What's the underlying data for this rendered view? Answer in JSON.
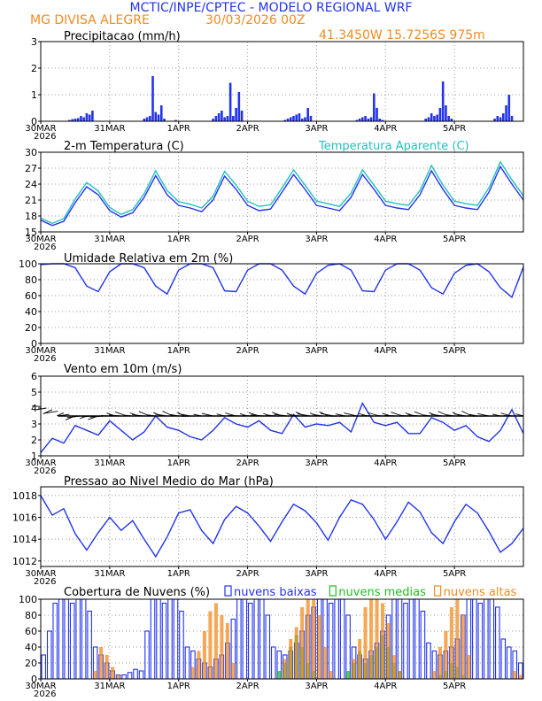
{
  "header": {
    "title": "MCTIC/INPE/CPTEC - MODELO REGIONAL WRF",
    "location": "MG DIVISA ALEGRE",
    "run": "30/03/2026 00Z",
    "coords": "41.3450W 15.7256S 975m"
  },
  "colors": {
    "blue": "#2233ee",
    "cyan": "#22c0c0",
    "orange": "#f08c22",
    "green": "#22bb22",
    "black": "#000000",
    "grid": "#999999"
  },
  "time_axis": {
    "ticks": [
      {
        "x": 0,
        "label": "30MAR",
        "year": "2026"
      },
      {
        "x": 24,
        "label": "31MAR"
      },
      {
        "x": 48,
        "label": "1APR"
      },
      {
        "x": 72,
        "label": "2APR"
      },
      {
        "x": 96,
        "label": "3APR"
      },
      {
        "x": 120,
        "label": "4APR"
      },
      {
        "x": 144,
        "label": "5APR"
      }
    ],
    "xlim": [
      0,
      168
    ]
  },
  "chart_data": [
    {
      "id": "precip",
      "type": "bar",
      "title": "Precipitacao (mm/h)",
      "ylim": [
        0,
        3
      ],
      "yticks": [
        0,
        1,
        2,
        3
      ],
      "x": [
        10,
        11,
        12,
        13,
        14,
        15,
        16,
        17,
        18,
        36,
        37,
        38,
        39,
        40,
        41,
        42,
        43,
        47,
        60,
        61,
        62,
        63,
        64,
        65,
        66,
        67,
        68,
        69,
        70,
        85,
        86,
        87,
        88,
        89,
        90,
        91,
        92,
        93,
        94,
        110,
        111,
        112,
        113,
        114,
        115,
        116,
        117,
        118,
        119,
        134,
        135,
        136,
        137,
        138,
        139,
        140,
        141,
        142,
        143,
        158,
        159,
        160,
        161,
        162,
        163,
        164
      ],
      "values": [
        0.05,
        0.08,
        0.1,
        0.12,
        0.2,
        0.15,
        0.3,
        0.25,
        0.4,
        0.1,
        0.15,
        0.2,
        1.7,
        0.35,
        0.25,
        0.6,
        0.1,
        0.05,
        0.1,
        0.2,
        0.3,
        0.4,
        0.15,
        0.2,
        1.45,
        0.2,
        0.5,
        1.1,
        0.4,
        0.05,
        0.1,
        0.15,
        0.2,
        0.25,
        0.3,
        0.1,
        0.15,
        0.5,
        0.2,
        0.05,
        0.1,
        0.15,
        0.2,
        0.1,
        0.15,
        1.05,
        0.5,
        0.1,
        0.05,
        0.1,
        0.15,
        0.3,
        0.2,
        0.25,
        0.5,
        1.5,
        0.6,
        0.2,
        0.1,
        0.1,
        0.2,
        0.15,
        0.3,
        0.6,
        1.0,
        0.2
      ],
      "series": [
        {
          "name": "Precipitacao",
          "color": "#2233ee"
        }
      ]
    },
    {
      "id": "temp",
      "type": "line",
      "title": "2-m Temperatura (C)",
      "ylim": [
        15,
        30
      ],
      "yticks": [
        15,
        18,
        21,
        24,
        27,
        30
      ],
      "legend_right": "Temperatura Aparente (C)",
      "x": [
        0,
        4,
        8,
        12,
        16,
        20,
        24,
        28,
        32,
        36,
        40,
        44,
        48,
        52,
        56,
        60,
        64,
        68,
        72,
        76,
        80,
        84,
        88,
        92,
        96,
        100,
        104,
        108,
        112,
        116,
        120,
        124,
        128,
        132,
        136,
        140,
        144,
        148,
        152,
        156,
        160,
        164,
        168
      ],
      "series": [
        {
          "name": "2-m Temperatura (C)",
          "color": "#2233ee",
          "values": [
            17.2,
            16.2,
            17.0,
            20.5,
            23.5,
            22.0,
            19.0,
            17.8,
            18.6,
            21.5,
            25.6,
            22.0,
            20.0,
            19.5,
            18.8,
            21.0,
            25.5,
            23.0,
            20.0,
            19.0,
            19.3,
            22.5,
            25.8,
            23.0,
            20.0,
            19.5,
            19.0,
            21.5,
            25.8,
            23.0,
            20.0,
            19.5,
            19.2,
            22.0,
            26.5,
            23.0,
            20.0,
            19.5,
            19.2,
            22.5,
            27.3,
            24.0,
            21.0
          ]
        },
        {
          "name": "Temperatura Aparente (C)",
          "color": "#22c0c0",
          "values": [
            17.6,
            16.6,
            17.5,
            21.2,
            24.3,
            22.7,
            19.6,
            18.3,
            19.2,
            22.2,
            26.5,
            22.8,
            20.7,
            20.2,
            19.5,
            21.7,
            26.4,
            23.8,
            20.8,
            19.8,
            20.1,
            23.3,
            26.7,
            23.8,
            20.8,
            20.3,
            19.8,
            22.3,
            26.7,
            23.8,
            20.8,
            20.3,
            20.0,
            22.8,
            27.5,
            23.8,
            20.8,
            20.3,
            20.0,
            23.3,
            28.2,
            24.8,
            21.8
          ]
        }
      ]
    },
    {
      "id": "rh",
      "type": "line",
      "title": "Umidade Relativa em 2m (%)",
      "ylim": [
        0,
        100
      ],
      "yticks": [
        0,
        20,
        40,
        60,
        80,
        100
      ],
      "x": [
        0,
        4,
        8,
        12,
        16,
        20,
        24,
        28,
        32,
        36,
        40,
        44,
        48,
        52,
        56,
        60,
        64,
        68,
        72,
        76,
        80,
        84,
        88,
        92,
        96,
        100,
        104,
        108,
        112,
        116,
        120,
        124,
        128,
        132,
        136,
        140,
        144,
        148,
        152,
        156,
        160,
        164,
        168
      ],
      "series": [
        {
          "name": "Umidade Relativa",
          "color": "#2233ee",
          "values": [
            99,
            100,
            100,
            95,
            72,
            65,
            90,
            100,
            100,
            95,
            72,
            62,
            92,
            100,
            100,
            95,
            66,
            65,
            92,
            100,
            100,
            92,
            72,
            62,
            88,
            98,
            100,
            92,
            66,
            65,
            92,
            100,
            100,
            92,
            70,
            62,
            88,
            98,
            100,
            90,
            70,
            58,
            96
          ]
        }
      ]
    },
    {
      "id": "wind",
      "type": "line",
      "title": "Vento em 10m (m/s)",
      "ylim": [
        1,
        6
      ],
      "yticks": [
        1,
        2,
        3,
        4,
        5,
        6
      ],
      "barb_level": 3.5,
      "x": [
        0,
        4,
        8,
        12,
        16,
        20,
        24,
        28,
        32,
        36,
        40,
        44,
        48,
        52,
        56,
        60,
        64,
        68,
        72,
        76,
        80,
        84,
        88,
        92,
        96,
        100,
        104,
        108,
        112,
        116,
        120,
        124,
        128,
        132,
        136,
        140,
        144,
        148,
        152,
        156,
        160,
        164,
        168
      ],
      "series": [
        {
          "name": "Vento",
          "color": "#2233ee",
          "values": [
            1.2,
            2.1,
            1.8,
            2.9,
            2.6,
            2.3,
            3.2,
            2.6,
            2.0,
            2.5,
            3.5,
            2.8,
            2.6,
            2.2,
            2.0,
            2.6,
            3.4,
            3.0,
            2.8,
            3.2,
            2.6,
            2.4,
            3.6,
            2.8,
            3.0,
            2.9,
            3.1,
            2.5,
            4.3,
            3.1,
            2.9,
            3.1,
            2.4,
            2.4,
            3.4,
            3.1,
            2.6,
            2.9,
            2.2,
            1.9,
            2.6,
            3.9,
            2.4
          ]
        }
      ]
    },
    {
      "id": "pressure",
      "type": "line",
      "title": "Pressao ao Nivel Medio do Mar (hPa)",
      "ylim": [
        1011.5,
        1018.8
      ],
      "yticks": [
        1012,
        1014,
        1016,
        1018
      ],
      "x": [
        0,
        4,
        8,
        12,
        16,
        20,
        24,
        28,
        32,
        36,
        40,
        44,
        48,
        52,
        56,
        60,
        64,
        68,
        72,
        76,
        80,
        84,
        88,
        92,
        96,
        100,
        104,
        108,
        112,
        116,
        120,
        124,
        128,
        132,
        136,
        140,
        144,
        148,
        152,
        156,
        160,
        164,
        168
      ],
      "series": [
        {
          "name": "Pressao",
          "color": "#2233ee",
          "values": [
            1018.0,
            1016.2,
            1016.8,
            1014.5,
            1013.0,
            1014.6,
            1016.0,
            1014.8,
            1015.7,
            1014.0,
            1012.4,
            1014.2,
            1016.4,
            1016.7,
            1014.8,
            1013.6,
            1015.8,
            1017.0,
            1016.4,
            1015.2,
            1013.8,
            1015.6,
            1017.2,
            1016.6,
            1015.5,
            1013.9,
            1016.0,
            1017.6,
            1017.2,
            1015.8,
            1014.0,
            1015.6,
            1017.4,
            1016.5,
            1014.6,
            1013.6,
            1015.6,
            1017.2,
            1016.4,
            1014.7,
            1012.8,
            1013.6,
            1015.0
          ]
        }
      ]
    },
    {
      "id": "clouds",
      "type": "bar",
      "title": "Cobertura de Nuvens (%)",
      "ylim": [
        0,
        100
      ],
      "yticks": [
        0,
        20,
        40,
        60,
        80,
        100
      ],
      "legend": [
        {
          "name": "nuvens baixas",
          "color": "#2233ee"
        },
        {
          "name": "nuvens medias",
          "color": "#22bb22"
        },
        {
          "name": "nuvens altas",
          "color": "#f08c22"
        }
      ],
      "bins": 84,
      "series": [
        {
          "name": "nuvens baixas",
          "values": [
            30,
            60,
            95,
            100,
            100,
            95,
            100,
            100,
            85,
            40,
            30,
            20,
            10,
            5,
            5,
            8,
            12,
            10,
            60,
            100,
            100,
            95,
            100,
            100,
            85,
            40,
            35,
            25,
            20,
            15,
            25,
            30,
            45,
            75,
            100,
            100,
            95,
            100,
            100,
            80,
            40,
            35,
            30,
            35,
            45,
            60,
            80,
            90,
            100,
            100,
            95,
            100,
            100,
            80,
            40,
            30,
            25,
            35,
            45,
            60,
            80,
            100,
            100,
            95,
            100,
            100,
            85,
            45,
            35,
            30,
            35,
            40,
            50,
            80,
            100,
            100,
            95,
            100,
            100,
            90,
            50,
            40,
            35,
            20
          ]
        },
        {
          "name": "nuvens medias",
          "values": [
            0,
            0,
            0,
            0,
            0,
            0,
            0,
            0,
            0,
            0,
            0,
            0,
            0,
            0,
            0,
            0,
            0,
            0,
            0,
            0,
            0,
            0,
            0,
            0,
            0,
            0,
            0,
            0,
            0,
            0,
            0,
            0,
            0,
            0,
            0,
            0,
            0,
            0,
            0,
            0,
            0,
            10,
            20,
            40,
            55,
            40,
            20,
            10,
            0,
            0,
            0,
            0,
            0,
            10,
            20,
            35,
            20,
            30,
            40,
            55,
            40,
            20,
            10,
            0,
            0,
            0,
            0,
            0,
            0,
            5,
            10,
            20,
            15,
            5,
            0,
            0,
            0,
            0,
            0,
            0,
            0,
            0,
            0,
            0
          ]
        },
        {
          "name": "nuvens altas",
          "values": [
            0,
            0,
            0,
            0,
            0,
            0,
            0,
            0,
            0,
            10,
            40,
            30,
            15,
            5,
            0,
            0,
            0,
            0,
            0,
            0,
            0,
            0,
            0,
            0,
            0,
            0,
            15,
            35,
            60,
            85,
            95,
            80,
            70,
            20,
            0,
            0,
            0,
            0,
            0,
            0,
            0,
            0,
            25,
            50,
            65,
            90,
            100,
            100,
            80,
            40,
            10,
            0,
            0,
            0,
            25,
            50,
            90,
            100,
            100,
            95,
            70,
            30,
            10,
            0,
            0,
            0,
            0,
            0,
            10,
            40,
            60,
            90,
            100,
            80,
            30,
            0,
            0,
            0,
            0,
            0,
            0,
            0,
            10,
            5
          ]
        }
      ]
    }
  ]
}
